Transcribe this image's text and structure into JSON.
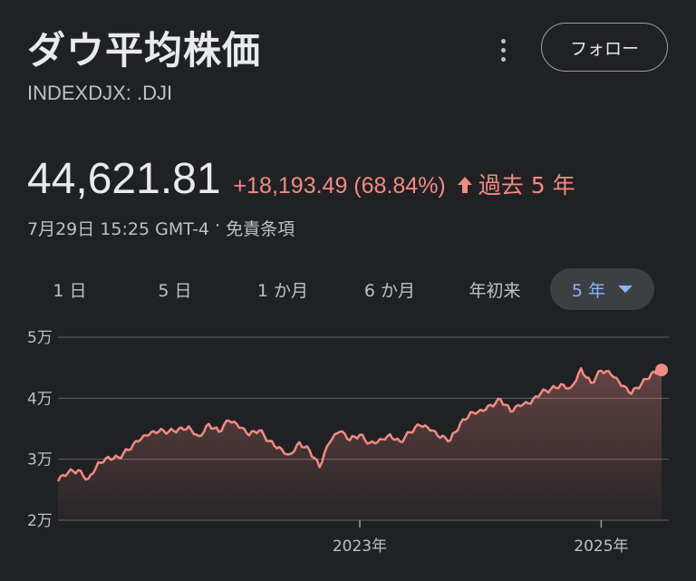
{
  "header": {
    "title": "ダウ平均株価",
    "ticker": "INDEXDJX: .DJI",
    "follow_label": "フォロー"
  },
  "quote": {
    "price": "44,621.81",
    "change": "+18,193.49 (68.84%)",
    "period": "過去 5 年",
    "timestamp": "7月29日 15:25 GMT-4",
    "separator": "·",
    "disclaimer": "免責条項"
  },
  "tabs": [
    {
      "label": "1 日",
      "active": false
    },
    {
      "label": "5 日",
      "active": false
    },
    {
      "label": "1 か月",
      "active": false
    },
    {
      "label": "6 か月",
      "active": false
    },
    {
      "label": "年初来",
      "active": false
    },
    {
      "label": "5 年",
      "active": true
    }
  ],
  "colors": {
    "background": "#202124",
    "line": "#f28b82",
    "accent": "#8ab4f8",
    "text": "#e8eaed",
    "muted": "#bdc1c6"
  },
  "chart_data": {
    "type": "area",
    "y_tick_labels": [
      "5万",
      "4万",
      "3万",
      "2万"
    ],
    "y_ticks": [
      50000,
      40000,
      30000,
      20000
    ],
    "ylim": [
      20000,
      50000
    ],
    "x_tick_labels": [
      "2023年",
      "2025年"
    ],
    "x_ticks": [
      "2023-01",
      "2025-01"
    ],
    "xlim": [
      "2020-07",
      "2025-07"
    ],
    "series": [
      {
        "points": [
          [
            "2020-07",
            26400
          ],
          [
            "2020-08",
            27800
          ],
          [
            "2020-09",
            28200
          ],
          [
            "2020-10",
            26800
          ],
          [
            "2020-11",
            29500
          ],
          [
            "2020-12",
            30400
          ],
          [
            "2021-01",
            30300
          ],
          [
            "2021-02",
            31500
          ],
          [
            "2021-03",
            32900
          ],
          [
            "2021-04",
            33900
          ],
          [
            "2021-05",
            34500
          ],
          [
            "2021-06",
            34500
          ],
          [
            "2021-07",
            35000
          ],
          [
            "2021-08",
            35400
          ],
          [
            "2021-09",
            33800
          ],
          [
            "2021-10",
            35800
          ],
          [
            "2021-11",
            34500
          ],
          [
            "2021-12",
            36300
          ],
          [
            "2022-01",
            35200
          ],
          [
            "2022-02",
            33900
          ],
          [
            "2022-03",
            34700
          ],
          [
            "2022-04",
            33000
          ],
          [
            "2022-05",
            32000
          ],
          [
            "2022-06",
            30800
          ],
          [
            "2022-07",
            32800
          ],
          [
            "2022-08",
            31500
          ],
          [
            "2022-09",
            28700
          ],
          [
            "2022-10",
            32700
          ],
          [
            "2022-11",
            34500
          ],
          [
            "2022-12",
            33100
          ],
          [
            "2023-01",
            34000
          ],
          [
            "2023-02",
            32700
          ],
          [
            "2023-03",
            33300
          ],
          [
            "2023-04",
            34100
          ],
          [
            "2023-05",
            32900
          ],
          [
            "2023-06",
            34400
          ],
          [
            "2023-07",
            35500
          ],
          [
            "2023-08",
            34700
          ],
          [
            "2023-09",
            33500
          ],
          [
            "2023-10",
            33100
          ],
          [
            "2023-11",
            35900
          ],
          [
            "2023-12",
            37700
          ],
          [
            "2024-01",
            38100
          ],
          [
            "2024-02",
            38900
          ],
          [
            "2024-03",
            39800
          ],
          [
            "2024-04",
            37800
          ],
          [
            "2024-05",
            38700
          ],
          [
            "2024-06",
            39100
          ],
          [
            "2024-07",
            40800
          ],
          [
            "2024-08",
            41500
          ],
          [
            "2024-09",
            42300
          ],
          [
            "2024-10",
            41800
          ],
          [
            "2024-11",
            44900
          ],
          [
            "2024-12",
            42500
          ],
          [
            "2025-01",
            44500
          ],
          [
            "2025-02",
            43800
          ],
          [
            "2025-03",
            42000
          ],
          [
            "2025-04",
            40700
          ],
          [
            "2025-05",
            42300
          ],
          [
            "2025-06",
            44100
          ],
          [
            "2025-07",
            44621.81
          ]
        ]
      }
    ]
  }
}
